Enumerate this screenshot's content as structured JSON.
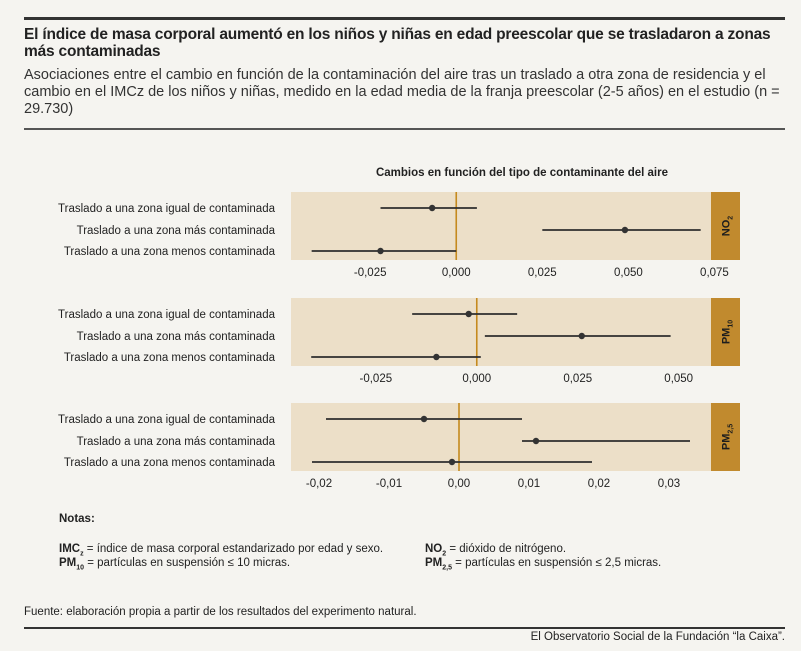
{
  "header": {
    "title": "El índice de masa corporal aumentó en los niños y niñas en edad preescolar que se trasladaron a zonas más contaminadas",
    "subtitle": "Asociaciones entre el cambio en función de la contaminación del aire tras un traslado a otra zona de residencia y el cambio en el IMCz de los niños y niñas, medido en la edad media de la franja preescolar (2-5 años) en el estudio (n = 29.730)"
  },
  "chart_header": "Cambios en función del tipo de contaminante del aire",
  "colors": {
    "panel_bg": "#ecdfc8",
    "tag_bg": "#c18a2e",
    "zero_line": "#c58a1e",
    "point": "#333333"
  },
  "chart_data": [
    {
      "type": "scatter",
      "subtype": "forest-plot",
      "panel_label": "NO",
      "panel_label_sub": "2",
      "categories": [
        "Traslado a una zona igual de contaminada",
        "Traslado a una zona más contaminada",
        "Traslado a una zona menos contaminada"
      ],
      "estimates": [
        -0.007,
        0.049,
        -0.022
      ],
      "ci_low": [
        -0.022,
        0.025,
        -0.042
      ],
      "ci_high": [
        0.006,
        0.071,
        0.0
      ],
      "xlim": [
        -0.048,
        0.074
      ],
      "ticks": [
        -0.025,
        0.0,
        0.025,
        0.05,
        0.075
      ],
      "tick_labels": [
        "-0,025",
        "0,000",
        "0,025",
        "0,050",
        "0,075"
      ]
    },
    {
      "type": "scatter",
      "subtype": "forest-plot",
      "panel_label": "PM",
      "panel_label_sub": "10",
      "categories": [
        "Traslado a una zona igual de contaminada",
        "Traslado a una zona más contaminada",
        "Traslado a una zona menos contaminada"
      ],
      "estimates": [
        -0.002,
        0.026,
        -0.01
      ],
      "ci_low": [
        -0.016,
        0.002,
        -0.041
      ],
      "ci_high": [
        0.01,
        0.048,
        0.001
      ],
      "xlim": [
        -0.046,
        0.058
      ],
      "ticks": [
        -0.025,
        0.0,
        0.025,
        0.05
      ],
      "tick_labels": [
        "-0,025",
        "0,000",
        "0,025",
        "0,050"
      ]
    },
    {
      "type": "scatter",
      "subtype": "forest-plot",
      "panel_label": "PM",
      "panel_label_sub": "2,5",
      "categories": [
        "Traslado a una zona igual de contaminada",
        "Traslado a una zona más contaminada",
        "Traslado a una zona menos contaminada"
      ],
      "estimates": [
        -0.005,
        0.011,
        -0.001
      ],
      "ci_low": [
        -0.019,
        0.009,
        -0.021
      ],
      "ci_high": [
        0.009,
        0.033,
        0.019
      ],
      "xlim": [
        -0.024,
        0.036
      ],
      "ticks": [
        -0.02,
        -0.01,
        0.0,
        0.01,
        0.02,
        0.03
      ],
      "tick_labels": [
        "-0,02",
        "-0,01",
        "0,00",
        "0,01",
        "0,02",
        "0,03"
      ]
    }
  ],
  "notes": {
    "title": "Notas:",
    "imc_abbr": "IMC",
    "imc_sub": "z",
    "imc_text": " = índice de masa corporal estandarizado por edad y sexo.",
    "pm10_abbr": "PM",
    "pm10_sub": "10",
    "pm10_text": " = partículas en suspensión ≤ 10 micras.",
    "no2_abbr": "NO",
    "no2_sub": "2",
    "no2_text": " = dióxido de nitrógeno.",
    "pm25_abbr": "PM",
    "pm25_sub": "2,5",
    "pm25_text": " = partículas en suspensión ≤ 2,5 micras."
  },
  "footer": {
    "source": "Fuente: elaboración propia a partir de los resultados del experimento natural.",
    "credit": "El Observatorio Social de la Fundación “la Caixa”."
  }
}
